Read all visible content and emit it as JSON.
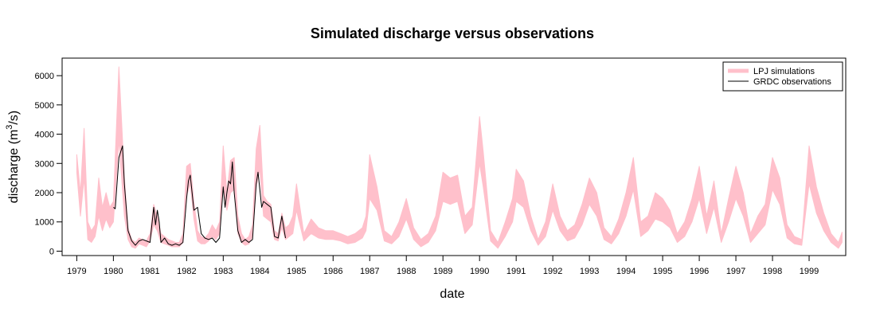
{
  "chart_data": {
    "type": "line",
    "title": "Simulated discharge versus observations",
    "xlabel": "date",
    "ylabel_main": "discharge (m",
    "ylabel_sup": "3",
    "ylabel_tail": "/s)",
    "xlim": [
      1978.6,
      2000.0
    ],
    "ylim": [
      -150,
      6600
    ],
    "x_ticks": [
      1979,
      1980,
      1981,
      1982,
      1983,
      1984,
      1985,
      1986,
      1987,
      1988,
      1989,
      1990,
      1991,
      1992,
      1993,
      1994,
      1995,
      1996,
      1997,
      1998,
      1999
    ],
    "x_tick_labels": [
      "1979",
      "1980",
      "1981",
      "1982",
      "1983",
      "1984",
      "1985",
      "1986",
      "1987",
      "1988",
      "1989",
      "1990",
      "1991",
      "1992",
      "1993",
      "1994",
      "1995",
      "1996",
      "1997",
      "1998",
      "1999"
    ],
    "y_ticks": [
      0,
      1000,
      2000,
      3000,
      4000,
      5000,
      6000
    ],
    "y_tick_labels": [
      "0",
      "1000",
      "2000",
      "3000",
      "4000",
      "5000",
      "6000"
    ],
    "legend_position": "top-right",
    "series": [
      {
        "name": "LPJ simulations",
        "color": "#FFC0CB",
        "style": "band",
        "x": [
          1979.0,
          1979.1,
          1979.2,
          1979.3,
          1979.4,
          1979.5,
          1979.6,
          1979.7,
          1979.8,
          1979.9,
          1980.0,
          1980.15,
          1980.3,
          1980.4,
          1980.5,
          1980.6,
          1980.7,
          1980.8,
          1980.9,
          1981.0,
          1981.1,
          1981.2,
          1981.3,
          1981.4,
          1981.5,
          1981.6,
          1981.7,
          1981.8,
          1981.9,
          1982.0,
          1982.1,
          1982.2,
          1982.3,
          1982.4,
          1982.5,
          1982.6,
          1982.7,
          1982.8,
          1982.9,
          1983.0,
          1983.1,
          1983.2,
          1983.3,
          1983.4,
          1983.5,
          1983.6,
          1983.7,
          1983.8,
          1983.9,
          1984.0,
          1984.1,
          1984.2,
          1984.3,
          1984.4,
          1984.5,
          1984.6,
          1984.7,
          1984.8,
          1984.9,
          1985.0,
          1985.2,
          1985.4,
          1985.6,
          1985.8,
          1986.0,
          1986.2,
          1986.4,
          1986.6,
          1986.8,
          1986.9,
          1987.0,
          1987.2,
          1987.4,
          1987.6,
          1987.8,
          1988.0,
          1988.2,
          1988.4,
          1988.6,
          1988.8,
          1989.0,
          1989.2,
          1989.4,
          1989.6,
          1989.8,
          1990.0,
          1990.1,
          1990.3,
          1990.5,
          1990.7,
          1990.9,
          1991.0,
          1991.2,
          1991.4,
          1991.6,
          1991.8,
          1992.0,
          1992.2,
          1992.4,
          1992.6,
          1992.8,
          1993.0,
          1993.2,
          1993.4,
          1993.6,
          1993.8,
          1994.0,
          1994.2,
          1994.4,
          1994.6,
          1994.8,
          1995.0,
          1995.2,
          1995.4,
          1995.6,
          1995.8,
          1996.0,
          1996.2,
          1996.4,
          1996.6,
          1996.8,
          1997.0,
          1997.2,
          1997.4,
          1997.6,
          1997.8,
          1998.0,
          1998.2,
          1998.4,
          1998.6,
          1998.8,
          1999.0,
          1999.2,
          1999.4,
          1999.6,
          1999.8,
          1999.9
        ],
        "upper": [
          3300,
          2000,
          4200,
          1000,
          700,
          900,
          2500,
          1500,
          2000,
          1500,
          1700,
          6300,
          2500,
          800,
          400,
          300,
          450,
          400,
          350,
          600,
          1600,
          1200,
          600,
          500,
          400,
          350,
          300,
          300,
          600,
          2900,
          3000,
          1700,
          700,
          500,
          450,
          600,
          900,
          700,
          1000,
          3600,
          2000,
          3100,
          3200,
          1200,
          600,
          400,
          500,
          900,
          3500,
          4300,
          1900,
          1700,
          1600,
          700,
          600,
          1300,
          800,
          900,
          1200,
          2300,
          600,
          1100,
          800,
          700,
          700,
          600,
          500,
          600,
          800,
          1200,
          3300,
          2200,
          700,
          500,
          1000,
          1800,
          800,
          400,
          600,
          1200,
          2700,
          2500,
          2600,
          1200,
          1500,
          4600,
          3400,
          700,
          300,
          1000,
          1800,
          2800,
          2400,
          1200,
          400,
          1000,
          2300,
          1200,
          700,
          900,
          1600,
          2500,
          2000,
          800,
          500,
          1100,
          2000,
          3200,
          1000,
          1200,
          2000,
          1800,
          1400,
          600,
          1000,
          1800,
          2900,
          1200,
          2400,
          600,
          1800,
          2900,
          2000,
          600,
          1200,
          1600,
          3200,
          2500,
          900,
          500,
          400,
          3600,
          2200,
          1300,
          600,
          300,
          650
        ],
        "lower": [
          2700,
          1200,
          2500,
          400,
          300,
          500,
          1200,
          700,
          1100,
          800,
          1000,
          3800,
          1200,
          400,
          150,
          100,
          250,
          200,
          150,
          350,
          900,
          700,
          300,
          250,
          200,
          150,
          150,
          150,
          300,
          1900,
          2300,
          1100,
          350,
          250,
          250,
          350,
          500,
          400,
          600,
          2300,
          1400,
          2000,
          2100,
          600,
          300,
          200,
          250,
          500,
          2200,
          2800,
          1200,
          1100,
          1000,
          400,
          350,
          800,
          400,
          500,
          600,
          1400,
          350,
          600,
          450,
          400,
          400,
          350,
          250,
          300,
          450,
          700,
          1800,
          1400,
          350,
          250,
          500,
          1100,
          400,
          150,
          300,
          700,
          1700,
          1600,
          1700,
          600,
          900,
          3000,
          2200,
          350,
          100,
          500,
          1000,
          1700,
          1500,
          700,
          200,
          500,
          1400,
          700,
          350,
          450,
          900,
          1600,
          1200,
          400,
          250,
          600,
          1200,
          2100,
          500,
          700,
          1100,
          1000,
          800,
          300,
          500,
          1000,
          1800,
          600,
          1500,
          300,
          1000,
          1800,
          1200,
          300,
          600,
          900,
          2100,
          1600,
          450,
          250,
          200,
          2300,
          1300,
          700,
          300,
          100,
          300
        ]
      },
      {
        "name": "GRDC observations",
        "color": "#000000",
        "style": "line",
        "x": [
          1980.0,
          1980.05,
          1980.15,
          1980.25,
          1980.3,
          1980.4,
          1980.5,
          1980.6,
          1980.7,
          1980.8,
          1980.9,
          1981.0,
          1981.1,
          1981.15,
          1981.2,
          1981.25,
          1981.3,
          1981.4,
          1981.5,
          1981.6,
          1981.7,
          1981.8,
          1981.9,
          1982.0,
          1982.05,
          1982.1,
          1982.2,
          1982.3,
          1982.4,
          1982.5,
          1982.6,
          1982.7,
          1982.8,
          1982.9,
          1983.0,
          1983.05,
          1983.1,
          1983.15,
          1983.2,
          1983.25,
          1983.3,
          1983.4,
          1983.5,
          1983.6,
          1983.7,
          1983.8,
          1983.9,
          1983.95,
          1984.05,
          1984.1,
          1984.2,
          1984.3,
          1984.4,
          1984.5,
          1984.6,
          1984.7
        ],
        "y": [
          1500,
          1450,
          3200,
          3600,
          2300,
          700,
          350,
          200,
          350,
          400,
          350,
          300,
          1500,
          900,
          1400,
          1000,
          300,
          450,
          250,
          200,
          250,
          200,
          300,
          1800,
          2400,
          2600,
          1400,
          1500,
          600,
          450,
          400,
          450,
          300,
          450,
          2200,
          1500,
          2000,
          2400,
          2300,
          3050,
          2000,
          700,
          300,
          400,
          300,
          400,
          2300,
          2700,
          1500,
          1700,
          1600,
          1500,
          500,
          450,
          1200,
          450
        ]
      }
    ]
  }
}
